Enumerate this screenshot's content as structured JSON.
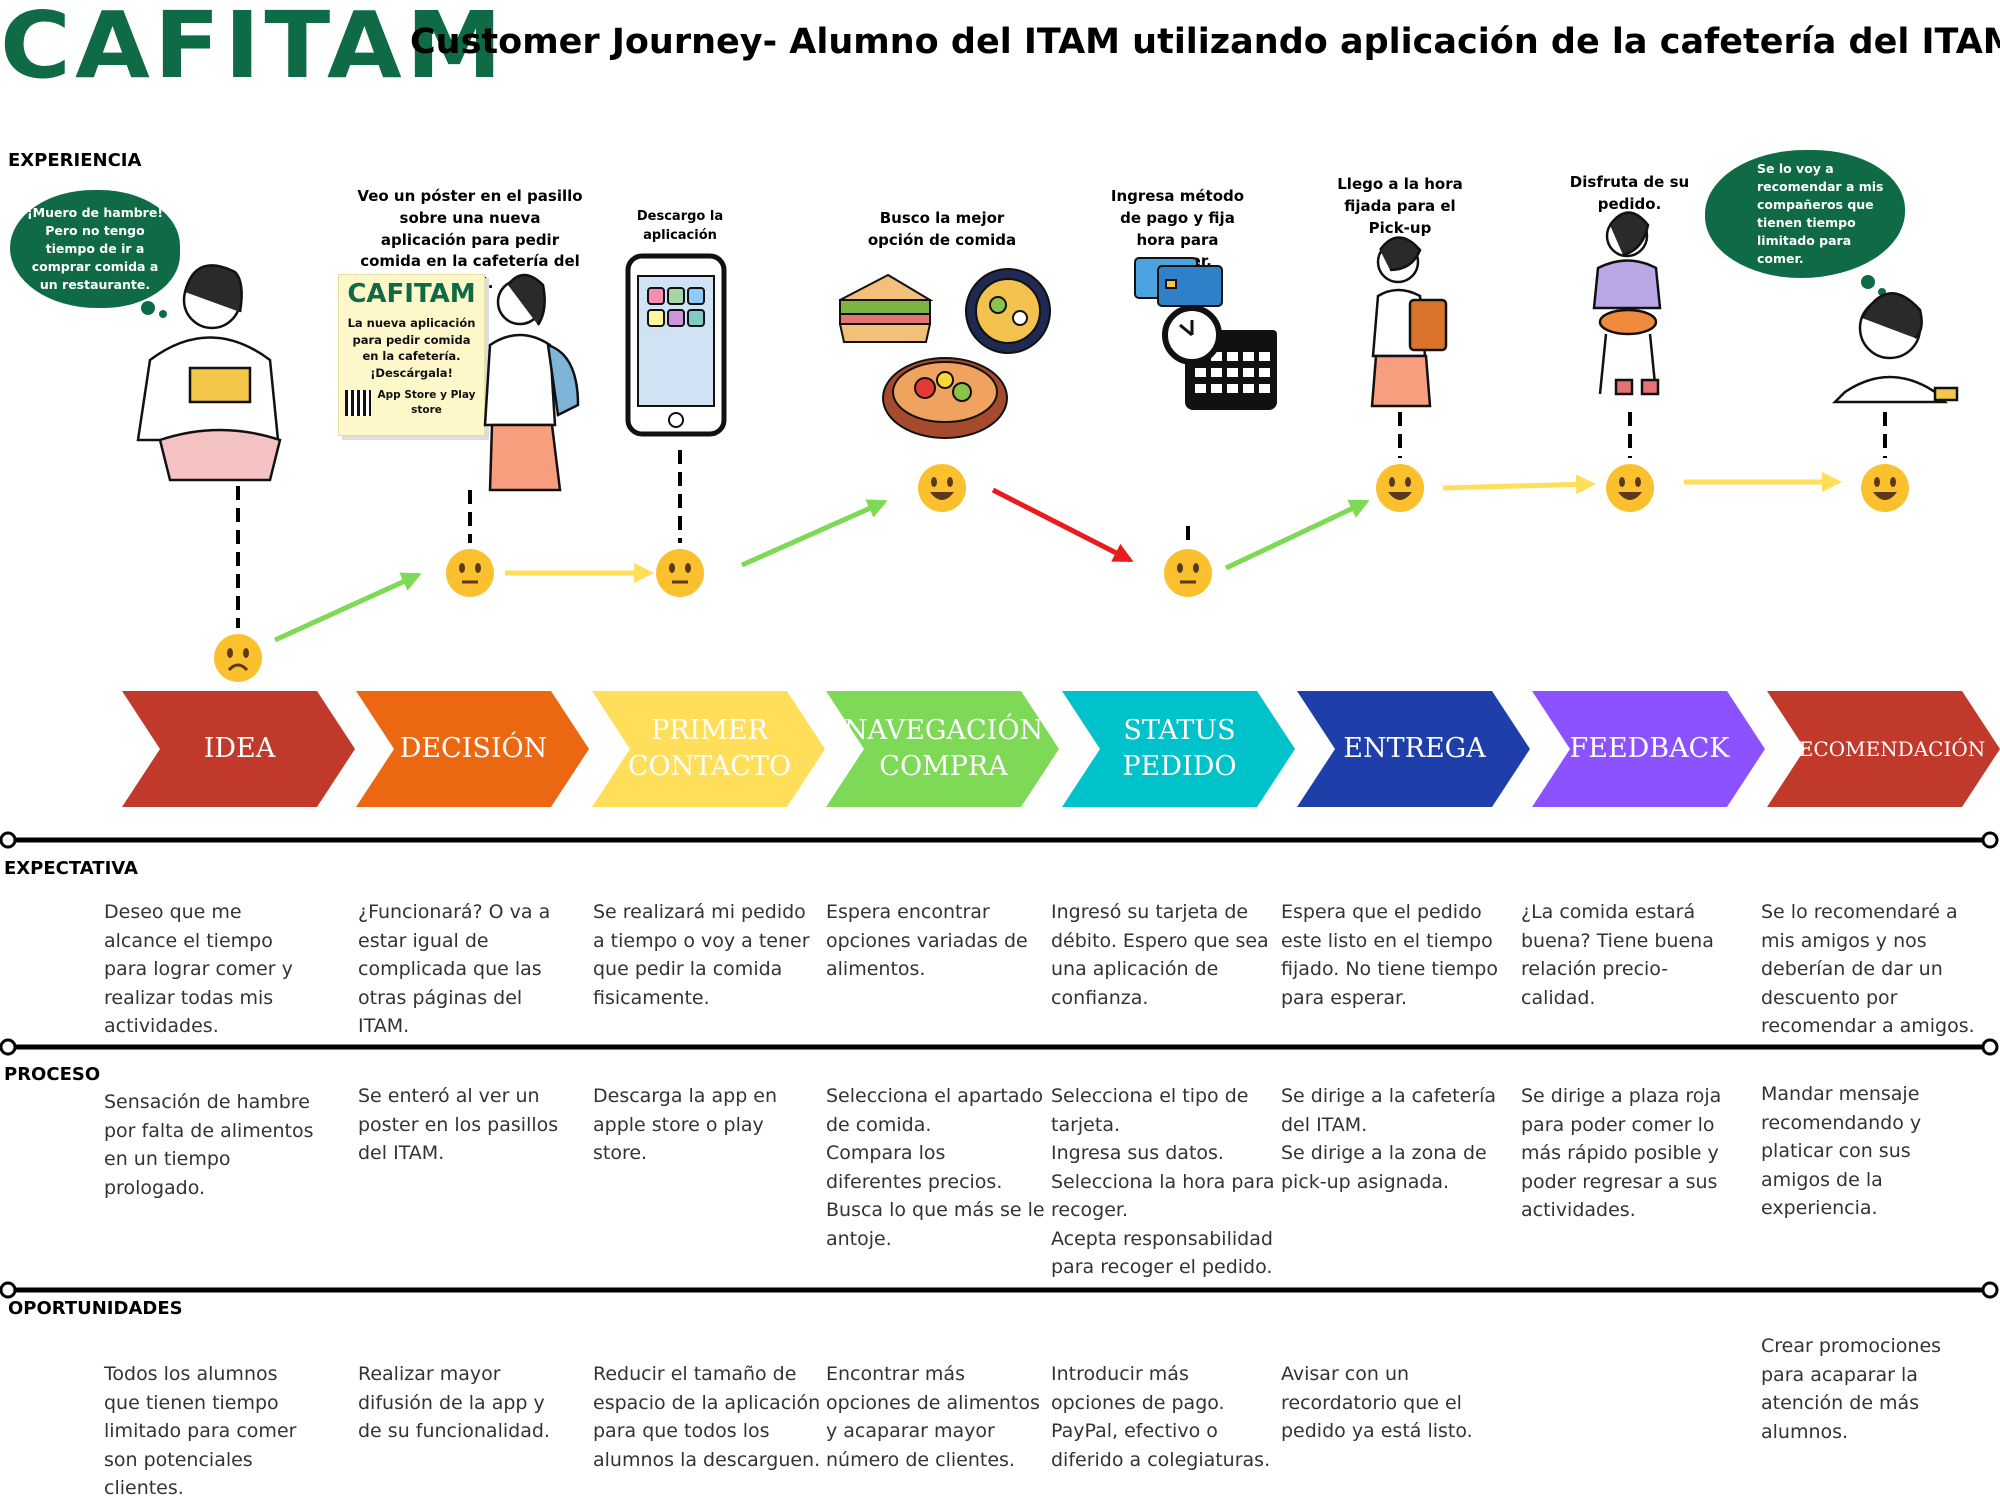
{
  "brand": "CAFITAM",
  "title": "Customer Journey- Alumno del ITAM utilizando aplicación de la cafetería del ITAM",
  "sections": {
    "experiencia": "EXPERIENCIA",
    "expectativa": "EXPECTATIVA",
    "proceso": "PROCESO",
    "oportunidades": "OPORTUNIDADES"
  },
  "bubbles": {
    "left": "¡Muero de hambre! Pero no tengo tiempo de ir a comprar comida a un restaurante.",
    "right": "Se lo voy a recomendar a mis compañeros que tienen tiempo limitado para comer."
  },
  "poster": {
    "logo": "CAFITAM",
    "text": "La nueva aplicación para pedir comida en la cafetería. ¡Descárgala!",
    "store": "App Store y Play store"
  },
  "captions": [
    "Veo un póster en el pasillo sobre una nueva aplicación para pedir comida en la cafetería del ITAM.",
    "Descargo la aplicación",
    "Busco la mejor opción de comida",
    "Ingresa método de pago y fija hora para recoger.",
    "Llego a la hora fijada para el Pick-up",
    "Disfruta de su pedido."
  ],
  "colors": {
    "brand_green": "#0f6b45",
    "emoji_yellow": "#fbc02d",
    "arrow_green": "#7ed957",
    "arrow_yellow": "#ffde59",
    "arrow_red": "#e81c1c"
  },
  "emotions": [
    "sad",
    "neutral",
    "neutral",
    "happy",
    "neutral",
    "happy",
    "happy",
    "happy"
  ],
  "steps": [
    {
      "label": "IDEA",
      "color": "#c0392b"
    },
    {
      "label": "DECISIÓN",
      "color": "#ec6712"
    },
    {
      "label": "PRIMER CONTACTO",
      "color": "#ffde59"
    },
    {
      "label": "NAVEGACIÓN COMPRA",
      "color": "#7ed957"
    },
    {
      "label": "STATUS PEDIDO",
      "color": "#00c2cb"
    },
    {
      "label": "ENTREGA",
      "color": "#1e3faa"
    },
    {
      "label": "FEEDBACK",
      "color": "#8c52ff"
    },
    {
      "label": "RECOMENDACIÓN",
      "color": "#c0392b"
    }
  ],
  "expectativa": [
    [
      "Deseo que me alcance el tiempo para lograr comer y realizar todas mis actividades."
    ],
    [
      "¿Funcionará? O va a estar igual de complicada que las otras páginas del ITAM."
    ],
    [
      "Se realizará mi pedido a tiempo o voy a tener que pedir la comida fisicamente."
    ],
    [
      "Espera encontrar opciones variadas de alimentos."
    ],
    [
      "Ingresó su tarjeta de débito. Espero que sea una aplicación de confianza."
    ],
    [
      "Espera que el pedido este listo en el tiempo fijado. No tiene tiempo para esperar."
    ],
    [
      "¿La comida estará buena? Tiene buena relación precio- calidad."
    ],
    [
      "Se lo recomendaré a mis amigos y nos deberían de dar un descuento por recomendar a amigos."
    ]
  ],
  "proceso": [
    [
      "Sensación de hambre por falta de alimentos en un tiempo prologado."
    ],
    [
      "Se enteró al ver un poster en los pasillos del ITAM."
    ],
    [
      "Descarga la app en apple store o play store."
    ],
    [
      "Selecciona el apartado de comida.",
      "Compara los diferentes precios.",
      "Busca lo que más se le antoje."
    ],
    [
      "Selecciona el tipo de tarjeta.",
      "Ingresa sus datos.",
      "Selecciona la hora para recoger.",
      "Acepta responsabilidad para recoger el pedido."
    ],
    [
      "Se dirige a la cafetería del ITAM.",
      "Se dirige a la zona de pick-up asignada."
    ],
    [
      "Se dirige a plaza roja para poder comer lo más rápido posible y poder regresar a sus actividades."
    ],
    [
      "Mandar mensaje recomendando y platicar con sus amigos de la experiencia."
    ]
  ],
  "oportunidades": [
    [
      "Todos los alumnos que tienen tiempo limitado para comer son potenciales clientes."
    ],
    [
      "Realizar mayor difusión de la app y de su funcionalidad."
    ],
    [
      "Reducir el tamaño de espacio de la aplicación para que todos los alumnos la descarguen."
    ],
    [
      "Encontrar más opciones de alimentos y acaparar mayor número de clientes."
    ],
    [
      "Introducir más opciones de pago. PayPal, efectivo o diferido a colegiaturas."
    ],
    [
      "Avisar con un recordatorio que el pedido ya está listo."
    ],
    [],
    [
      "Crear promociones para acaparar la atención de más alumnos."
    ]
  ]
}
